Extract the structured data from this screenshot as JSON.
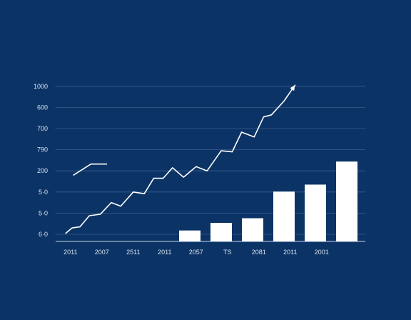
{
  "colors": {
    "background": "#0b3366",
    "grid": "#3b5e8c",
    "axis": "#c9d6e6",
    "line": "#ffffff",
    "bar": "#ffffff",
    "text": "#d8e2ef"
  },
  "chart_data": {
    "type": "bar",
    "title": "",
    "xlabel": "",
    "ylabel": "",
    "grid": true,
    "y_tick_labels": [
      "6·0",
      "5·0",
      "5·0",
      "200",
      "790",
      "700",
      "600",
      "1000"
    ],
    "ylim": [
      0,
      7
    ],
    "x_tick_labels": [
      "2011",
      "2007",
      "2511",
      "2011",
      "2057",
      "TS",
      "2081",
      "2011",
      "2001"
    ],
    "bars": [
      {
        "x": 4,
        "value": 0.18
      },
      {
        "x": 5,
        "value": 0.54
      },
      {
        "x": 6,
        "value": 0.76
      },
      {
        "x": 7,
        "value": 2.02
      },
      {
        "x": 8,
        "value": 2.35
      },
      {
        "x": 9,
        "value": 3.44
      }
    ],
    "series": [
      {
        "type": "line",
        "arrow_end": true,
        "points": [
          [
            0.05,
            0.05
          ],
          [
            0.25,
            0.3
          ],
          [
            0.5,
            0.35
          ],
          [
            0.8,
            0.88
          ],
          [
            1.15,
            0.95
          ],
          [
            1.5,
            1.5
          ],
          [
            1.8,
            1.33
          ],
          [
            2.2,
            2.0
          ],
          [
            2.55,
            1.92
          ],
          [
            2.85,
            2.65
          ],
          [
            3.15,
            2.65
          ],
          [
            3.45,
            3.15
          ],
          [
            3.8,
            2.7
          ],
          [
            4.2,
            3.2
          ],
          [
            4.55,
            3.0
          ],
          [
            5.0,
            3.95
          ],
          [
            5.35,
            3.9
          ],
          [
            5.65,
            4.83
          ],
          [
            6.05,
            4.6
          ],
          [
            6.35,
            5.55
          ],
          [
            6.6,
            5.65
          ],
          [
            7.0,
            6.3
          ],
          [
            7.35,
            7.05
          ]
        ]
      },
      {
        "type": "line",
        "arrow_end": false,
        "points": [
          [
            0.3,
            2.8
          ],
          [
            0.85,
            3.32
          ],
          [
            1.35,
            3.32
          ]
        ]
      }
    ]
  }
}
